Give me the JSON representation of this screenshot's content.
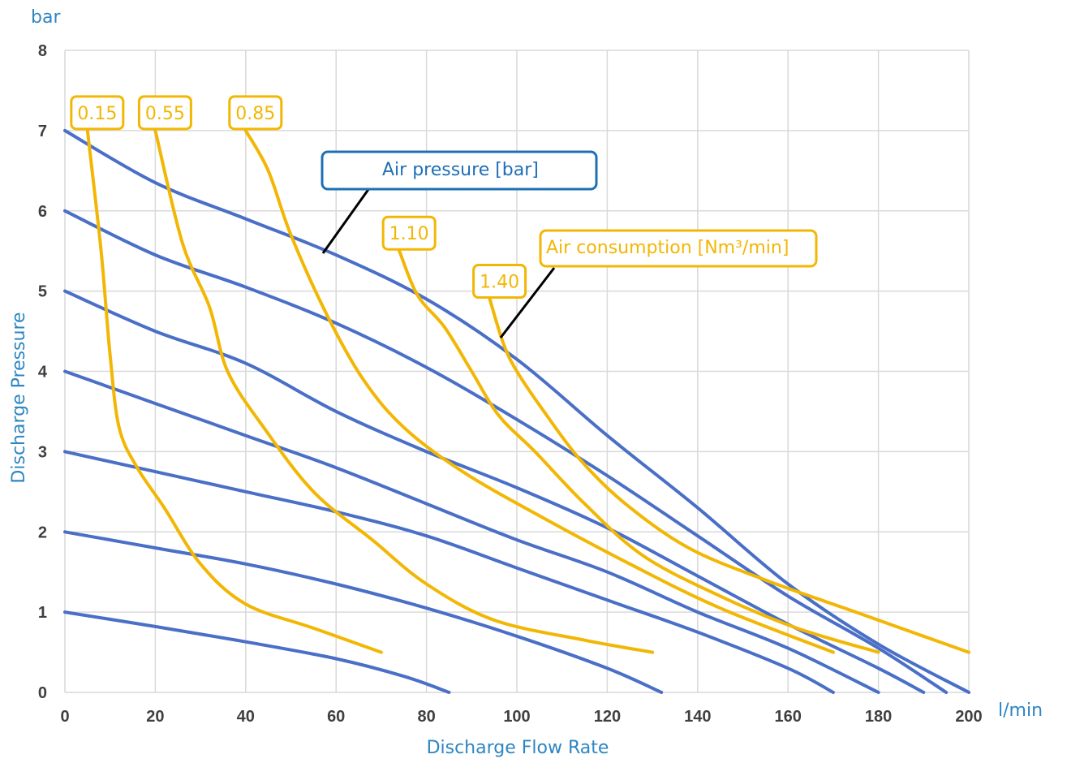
{
  "chart_data": {
    "type": "line",
    "y_unit": "bar",
    "x_unit": "l/min",
    "xlabel": "Discharge Flow Rate",
    "ylabel": "Discharge Pressure",
    "xlim": [
      0,
      200
    ],
    "ylim": [
      0,
      8
    ],
    "x_ticks": [
      "0",
      "20",
      "40",
      "60",
      "80",
      "100",
      "120",
      "140",
      "160",
      "180",
      "200"
    ],
    "y_ticks": [
      "0",
      "1",
      "2",
      "3",
      "4",
      "5",
      "6",
      "7",
      "8"
    ],
    "grid": true,
    "colors": {
      "air_pressure": "#4a6fc7",
      "air_consumption": "#f2b705",
      "leader": "#000000",
      "label_box_blue": "#1f6fb5"
    },
    "air_pressure_label": "Air pressure [bar]",
    "air_consumption_label": "Air consumption [Nm³/min]",
    "air_pressure_series": [
      {
        "name": "7",
        "points": [
          [
            0,
            7
          ],
          [
            20,
            6.35
          ],
          [
            40,
            5.9
          ],
          [
            60,
            5.45
          ],
          [
            80,
            4.9
          ],
          [
            100,
            4.15
          ],
          [
            120,
            3.2
          ],
          [
            140,
            2.3
          ],
          [
            160,
            1.35
          ],
          [
            180,
            0.6
          ],
          [
            200,
            0
          ]
        ]
      },
      {
        "name": "6",
        "points": [
          [
            0,
            6
          ],
          [
            20,
            5.45
          ],
          [
            40,
            5.05
          ],
          [
            60,
            4.6
          ],
          [
            80,
            4.05
          ],
          [
            100,
            3.4
          ],
          [
            120,
            2.7
          ],
          [
            140,
            1.95
          ],
          [
            160,
            1.2
          ],
          [
            180,
            0.55
          ],
          [
            195,
            0
          ]
        ]
      },
      {
        "name": "5",
        "points": [
          [
            0,
            5
          ],
          [
            20,
            4.5
          ],
          [
            40,
            4.1
          ],
          [
            60,
            3.5
          ],
          [
            80,
            3.0
          ],
          [
            100,
            2.55
          ],
          [
            120,
            2.05
          ],
          [
            140,
            1.45
          ],
          [
            160,
            0.85
          ],
          [
            180,
            0.3
          ],
          [
            190,
            0
          ]
        ]
      },
      {
        "name": "4",
        "points": [
          [
            0,
            4
          ],
          [
            20,
            3.6
          ],
          [
            40,
            3.2
          ],
          [
            60,
            2.8
          ],
          [
            80,
            2.35
          ],
          [
            100,
            1.9
          ],
          [
            120,
            1.5
          ],
          [
            140,
            1.0
          ],
          [
            160,
            0.55
          ],
          [
            180,
            0
          ]
        ]
      },
      {
        "name": "3",
        "points": [
          [
            0,
            3
          ],
          [
            20,
            2.75
          ],
          [
            40,
            2.5
          ],
          [
            60,
            2.25
          ],
          [
            80,
            1.95
          ],
          [
            100,
            1.55
          ],
          [
            120,
            1.15
          ],
          [
            140,
            0.75
          ],
          [
            160,
            0.3
          ],
          [
            170,
            0
          ]
        ]
      },
      {
        "name": "2",
        "points": [
          [
            0,
            2
          ],
          [
            20,
            1.8
          ],
          [
            40,
            1.6
          ],
          [
            60,
            1.35
          ],
          [
            80,
            1.05
          ],
          [
            100,
            0.7
          ],
          [
            120,
            0.3
          ],
          [
            132,
            0
          ]
        ]
      },
      {
        "name": "1",
        "points": [
          [
            0,
            1
          ],
          [
            20,
            0.82
          ],
          [
            40,
            0.63
          ],
          [
            60,
            0.42
          ],
          [
            75,
            0.2
          ],
          [
            85,
            0
          ]
        ]
      }
    ],
    "air_consumption_series": [
      {
        "name": "0.15",
        "label": "0.15",
        "points": [
          [
            5,
            7
          ],
          [
            8,
            5.5
          ],
          [
            10,
            4.2
          ],
          [
            12,
            3.3
          ],
          [
            16,
            2.8
          ],
          [
            22,
            2.3
          ],
          [
            30,
            1.6
          ],
          [
            40,
            1.1
          ],
          [
            55,
            0.8
          ],
          [
            70,
            0.5
          ]
        ]
      },
      {
        "name": "0.55",
        "label": "0.55",
        "points": [
          [
            20,
            7
          ],
          [
            26,
            5.6
          ],
          [
            32,
            4.8
          ],
          [
            36,
            4.0
          ],
          [
            44,
            3.3
          ],
          [
            55,
            2.5
          ],
          [
            68,
            1.9
          ],
          [
            80,
            1.35
          ],
          [
            95,
            0.9
          ],
          [
            115,
            0.65
          ],
          [
            130,
            0.5
          ]
        ]
      },
      {
        "name": "0.85",
        "label": "0.85",
        "points": [
          [
            40,
            7
          ],
          [
            45,
            6.5
          ],
          [
            50,
            5.7
          ],
          [
            58,
            4.7
          ],
          [
            66,
            3.9
          ],
          [
            75,
            3.3
          ],
          [
            88,
            2.75
          ],
          [
            105,
            2.2
          ],
          [
            125,
            1.6
          ],
          [
            145,
            1.05
          ],
          [
            170,
            0.5
          ]
        ]
      },
      {
        "name": "1.10",
        "label": "1.10",
        "points": [
          [
            74,
            5.5
          ],
          [
            78,
            4.95
          ],
          [
            84,
            4.55
          ],
          [
            90,
            4.0
          ],
          [
            96,
            3.45
          ],
          [
            104,
            3.0
          ],
          [
            115,
            2.35
          ],
          [
            128,
            1.7
          ],
          [
            145,
            1.2
          ],
          [
            162,
            0.8
          ],
          [
            180,
            0.5
          ]
        ]
      },
      {
        "name": "1.40",
        "label": "1.40",
        "points": [
          [
            94,
            4.9
          ],
          [
            97,
            4.35
          ],
          [
            100,
            4.0
          ],
          [
            106,
            3.5
          ],
          [
            114,
            2.9
          ],
          [
            124,
            2.35
          ],
          [
            138,
            1.8
          ],
          [
            155,
            1.4
          ],
          [
            175,
            1.0
          ],
          [
            200,
            0.5
          ]
        ]
      }
    ]
  }
}
